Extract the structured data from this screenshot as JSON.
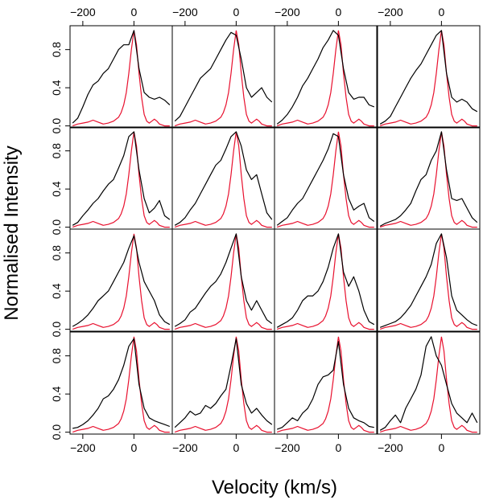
{
  "chart_data": {
    "type": "line",
    "layout": "4x4 panel grid",
    "xlabel": "Velocity (km/s)",
    "ylabel": "Normalised Intensity",
    "xlim": [
      -250,
      150
    ],
    "ylim": [
      -0.02,
      1.05
    ],
    "x_ticks": [
      -200,
      0
    ],
    "x_tick_labels": [
      "−200",
      "0"
    ],
    "y_ticks": [
      0.0,
      0.4,
      0.8
    ],
    "y_tick_labels": [
      "0.0",
      "0.4",
      "0.8"
    ],
    "x_ticks_position": "top and bottom",
    "y_ticks_position": "left",
    "grid": false,
    "legend": false,
    "colors": {
      "observed": "#000000",
      "model": "#e8102e"
    },
    "model_profile": {
      "x": [
        -240,
        -220,
        -200,
        -180,
        -160,
        -140,
        -120,
        -100,
        -80,
        -60,
        -50,
        -40,
        -30,
        -20,
        -10,
        0,
        10,
        20,
        30,
        40,
        50,
        60,
        70,
        80,
        90,
        100,
        110,
        120,
        130,
        140
      ],
      "y": [
        0.0,
        0.02,
        0.03,
        0.04,
        0.06,
        0.04,
        0.02,
        0.03,
        0.05,
        0.09,
        0.14,
        0.22,
        0.35,
        0.55,
        0.8,
        1.0,
        0.85,
        0.55,
        0.3,
        0.12,
        0.05,
        0.03,
        0.05,
        0.07,
        0.05,
        0.02,
        0.01,
        0.0,
        0.0,
        0.0
      ]
    },
    "panels": [
      {
        "row": 1,
        "col": 1,
        "x": [
          -240,
          -220,
          -200,
          -180,
          -160,
          -140,
          -120,
          -100,
          -80,
          -60,
          -40,
          -20,
          0,
          20,
          40,
          60,
          80,
          100,
          120,
          140
        ],
        "y": [
          0.03,
          0.08,
          0.2,
          0.33,
          0.43,
          0.47,
          0.55,
          0.6,
          0.7,
          0.8,
          0.85,
          0.85,
          1.0,
          0.6,
          0.35,
          0.3,
          0.28,
          0.3,
          0.27,
          0.22
        ]
      },
      {
        "row": 1,
        "col": 2,
        "x": [
          -240,
          -220,
          -200,
          -180,
          -160,
          -140,
          -120,
          -100,
          -80,
          -60,
          -40,
          -20,
          0,
          20,
          40,
          60,
          80,
          100,
          120,
          140
        ],
        "y": [
          0.05,
          0.1,
          0.2,
          0.3,
          0.4,
          0.5,
          0.55,
          0.6,
          0.7,
          0.8,
          0.9,
          0.98,
          0.95,
          0.7,
          0.4,
          0.3,
          0.35,
          0.4,
          0.3,
          0.25
        ]
      },
      {
        "row": 1,
        "col": 3,
        "x": [
          -240,
          -220,
          -200,
          -180,
          -160,
          -140,
          -120,
          -100,
          -80,
          -60,
          -40,
          -20,
          0,
          20,
          40,
          60,
          80,
          100,
          120,
          140
        ],
        "y": [
          0.02,
          0.06,
          0.12,
          0.2,
          0.3,
          0.42,
          0.5,
          0.6,
          0.7,
          0.82,
          0.9,
          1.0,
          0.95,
          0.6,
          0.35,
          0.28,
          0.3,
          0.3,
          0.22,
          0.2
        ]
      },
      {
        "row": 1,
        "col": 4,
        "x": [
          -240,
          -220,
          -200,
          -180,
          -160,
          -140,
          -120,
          -100,
          -80,
          -60,
          -40,
          -20,
          0,
          20,
          40,
          60,
          80,
          100,
          120,
          140
        ],
        "y": [
          0.02,
          0.05,
          0.1,
          0.2,
          0.3,
          0.4,
          0.5,
          0.58,
          0.65,
          0.75,
          0.85,
          0.95,
          1.0,
          0.55,
          0.3,
          0.25,
          0.28,
          0.25,
          0.18,
          0.15
        ]
      },
      {
        "row": 2,
        "col": 1,
        "x": [
          -240,
          -220,
          -200,
          -180,
          -160,
          -140,
          -120,
          -100,
          -80,
          -60,
          -40,
          -20,
          0,
          20,
          40,
          60,
          80,
          100,
          120,
          140
        ],
        "y": [
          0.02,
          0.05,
          0.12,
          0.18,
          0.25,
          0.3,
          0.38,
          0.45,
          0.5,
          0.62,
          0.75,
          0.95,
          1.0,
          0.6,
          0.3,
          0.15,
          0.2,
          0.28,
          0.12,
          0.08
        ]
      },
      {
        "row": 2,
        "col": 2,
        "x": [
          -240,
          -220,
          -200,
          -180,
          -160,
          -140,
          -120,
          -100,
          -80,
          -60,
          -40,
          -20,
          0,
          20,
          40,
          60,
          80,
          100,
          120,
          140
        ],
        "y": [
          0.02,
          0.05,
          0.1,
          0.18,
          0.25,
          0.35,
          0.45,
          0.55,
          0.65,
          0.7,
          0.82,
          0.95,
          1.0,
          0.85,
          0.6,
          0.5,
          0.55,
          0.35,
          0.15,
          0.08
        ]
      },
      {
        "row": 2,
        "col": 3,
        "x": [
          -240,
          -220,
          -200,
          -180,
          -160,
          -140,
          -120,
          -100,
          -80,
          -60,
          -40,
          -20,
          0,
          20,
          40,
          60,
          80,
          100,
          120,
          140
        ],
        "y": [
          0.02,
          0.06,
          0.1,
          0.18,
          0.25,
          0.3,
          0.4,
          0.5,
          0.6,
          0.7,
          0.82,
          0.98,
          0.95,
          0.55,
          0.3,
          0.18,
          0.22,
          0.25,
          0.1,
          0.06
        ]
      },
      {
        "row": 2,
        "col": 4,
        "x": [
          -240,
          -220,
          -200,
          -180,
          -160,
          -140,
          -120,
          -100,
          -80,
          -60,
          -40,
          -20,
          0,
          20,
          40,
          60,
          80,
          100,
          120,
          140
        ],
        "y": [
          0.01,
          0.04,
          0.06,
          0.08,
          0.12,
          0.18,
          0.25,
          0.38,
          0.5,
          0.55,
          0.7,
          0.8,
          1.0,
          0.6,
          0.3,
          0.28,
          0.3,
          0.2,
          0.1,
          0.05
        ]
      },
      {
        "row": 3,
        "col": 1,
        "x": [
          -240,
          -220,
          -200,
          -180,
          -160,
          -140,
          -120,
          -100,
          -80,
          -60,
          -40,
          -20,
          0,
          20,
          40,
          60,
          80,
          100,
          120,
          140
        ],
        "y": [
          0.03,
          0.06,
          0.1,
          0.15,
          0.22,
          0.3,
          0.35,
          0.4,
          0.5,
          0.6,
          0.7,
          0.85,
          0.98,
          0.7,
          0.5,
          0.4,
          0.3,
          0.15,
          0.08,
          0.05
        ]
      },
      {
        "row": 3,
        "col": 2,
        "x": [
          -240,
          -220,
          -200,
          -180,
          -160,
          -140,
          -120,
          -100,
          -80,
          -60,
          -40,
          -20,
          0,
          20,
          40,
          60,
          80,
          100,
          120,
          140
        ],
        "y": [
          0.03,
          0.06,
          0.1,
          0.18,
          0.22,
          0.3,
          0.38,
          0.45,
          0.5,
          0.58,
          0.7,
          0.85,
          1.0,
          0.55,
          0.3,
          0.2,
          0.3,
          0.2,
          0.1,
          0.06
        ]
      },
      {
        "row": 3,
        "col": 3,
        "x": [
          -240,
          -220,
          -200,
          -180,
          -160,
          -140,
          -120,
          -100,
          -80,
          -60,
          -40,
          -20,
          0,
          20,
          40,
          60,
          80,
          100,
          120,
          140
        ],
        "y": [
          0.02,
          0.05,
          0.08,
          0.12,
          0.2,
          0.3,
          0.35,
          0.35,
          0.4,
          0.5,
          0.65,
          0.85,
          1.0,
          0.6,
          0.45,
          0.55,
          0.4,
          0.2,
          0.08,
          0.05
        ]
      },
      {
        "row": 3,
        "col": 4,
        "x": [
          -240,
          -220,
          -200,
          -180,
          -160,
          -140,
          -120,
          -100,
          -80,
          -60,
          -40,
          -20,
          0,
          20,
          40,
          60,
          80,
          100,
          120,
          140
        ],
        "y": [
          0.02,
          0.04,
          0.06,
          0.08,
          0.12,
          0.18,
          0.25,
          0.35,
          0.45,
          0.55,
          0.68,
          0.9,
          1.0,
          0.75,
          0.35,
          0.2,
          0.15,
          0.1,
          0.06,
          0.04
        ]
      },
      {
        "row": 4,
        "col": 1,
        "x": [
          -240,
          -220,
          -200,
          -180,
          -160,
          -140,
          -120,
          -100,
          -80,
          -60,
          -40,
          -20,
          0,
          20,
          40,
          60,
          80,
          100,
          120,
          140
        ],
        "y": [
          0.04,
          0.05,
          0.08,
          0.12,
          0.18,
          0.25,
          0.35,
          0.38,
          0.45,
          0.55,
          0.7,
          0.9,
          0.98,
          0.5,
          0.25,
          0.15,
          0.12,
          0.1,
          0.08,
          0.06
        ]
      },
      {
        "row": 4,
        "col": 2,
        "x": [
          -240,
          -220,
          -200,
          -180,
          -160,
          -140,
          -120,
          -100,
          -80,
          -60,
          -40,
          -20,
          0,
          20,
          40,
          60,
          80,
          100,
          120,
          140
        ],
        "y": [
          0.05,
          0.1,
          0.15,
          0.22,
          0.18,
          0.2,
          0.28,
          0.25,
          0.3,
          0.38,
          0.45,
          0.7,
          0.98,
          0.5,
          0.3,
          0.2,
          0.25,
          0.18,
          0.12,
          0.08
        ]
      },
      {
        "row": 4,
        "col": 3,
        "x": [
          -240,
          -220,
          -200,
          -180,
          -160,
          -140,
          -120,
          -100,
          -80,
          -60,
          -40,
          -20,
          0,
          20,
          40,
          60,
          80,
          100,
          120,
          140
        ],
        "y": [
          0.03,
          0.05,
          0.1,
          0.15,
          0.12,
          0.2,
          0.25,
          0.35,
          0.5,
          0.58,
          0.6,
          0.65,
          0.95,
          0.5,
          0.25,
          0.15,
          0.12,
          0.1,
          0.06,
          0.05
        ]
      },
      {
        "row": 4,
        "col": 4,
        "x": [
          -240,
          -220,
          -200,
          -180,
          -160,
          -140,
          -120,
          -100,
          -80,
          -60,
          -40,
          -20,
          0,
          20,
          40,
          60,
          80,
          100,
          120,
          140
        ],
        "y": [
          0.02,
          0.05,
          0.12,
          0.18,
          0.1,
          0.25,
          0.35,
          0.45,
          0.6,
          0.9,
          1.0,
          0.8,
          0.7,
          0.5,
          0.3,
          0.2,
          0.15,
          0.1,
          0.2,
          0.1
        ]
      }
    ]
  }
}
